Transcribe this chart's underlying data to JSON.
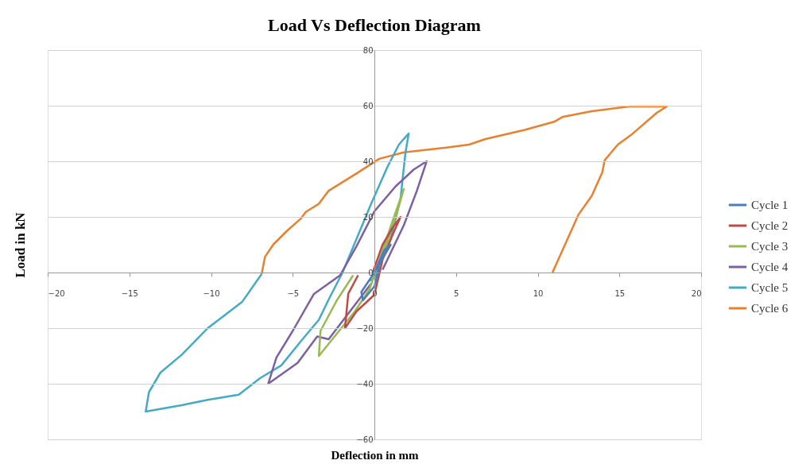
{
  "chart_data": {
    "type": "line",
    "title": "Load Vs Deflection Diagram",
    "xlabel": "Deflection in mm",
    "ylabel": "Load in kN",
    "xlim": [
      -20,
      20
    ],
    "ylim": [
      -60,
      80
    ],
    "xticks": [
      -20,
      -15,
      -10,
      -5,
      0,
      5,
      10,
      15,
      20
    ],
    "yticks": [
      -60,
      -40,
      -20,
      0,
      20,
      40,
      60,
      80
    ],
    "grid": "y",
    "legend": "right",
    "marker": "none",
    "line_style": "solid",
    "series": [
      {
        "name": "Cycle 1",
        "color": "#4a7ebb",
        "x": [
          0.1,
          0.5,
          1,
          0.6,
          0,
          -0.8,
          -0.7,
          0,
          0.3
        ],
        "values": [
          1,
          5,
          10,
          8,
          0,
          -7,
          -10,
          -5,
          2
        ]
      },
      {
        "name": "Cycle 2",
        "color": "#be4b48",
        "x": [
          -0.1,
          0.5,
          1.1,
          1.6,
          1.0,
          0.5,
          0,
          -1.1,
          -1.8,
          -1.6,
          -1
        ],
        "values": [
          0,
          10,
          16,
          20,
          12,
          4.6,
          -8,
          -14,
          -20,
          -7.6,
          -1
        ]
      },
      {
        "name": "Cycle 3",
        "color": "#98b954",
        "x": [
          0.2,
          0.8,
          1.4,
          1.8,
          1.2,
          0.4,
          -0.3,
          -1.2,
          -2.3,
          -3.4,
          -3.3,
          -2.3,
          -1.3
        ],
        "values": [
          2,
          11,
          22,
          30,
          20,
          6,
          -6,
          -14,
          -22,
          -30,
          -21,
          -10,
          -1
        ]
      },
      {
        "name": "Cycle 4",
        "color": "#7d60a0",
        "x": [
          0.5,
          1.8,
          2.6,
          3.2,
          2.4,
          1.3,
          0,
          -1.1,
          -2.1,
          -3.7,
          -5.0,
          -6.0,
          -6.5,
          -4.7,
          -3.5,
          -2.8,
          -0.2
        ],
        "values": [
          1,
          17,
          29.4,
          40,
          37,
          31,
          22,
          9.4,
          -1,
          -7.7,
          -21,
          -30.6,
          -40,
          -32.5,
          -23,
          -24,
          -4
        ]
      },
      {
        "name": "Cycle 5",
        "color": "#46aac5",
        "x": [
          -0.3,
          0,
          1,
          1.6,
          1.9,
          2.1,
          1.5,
          0.8,
          -0.2,
          -1.1,
          -1.95,
          -2.8,
          -3.4,
          -4.4,
          -5.7,
          -7,
          -8.3,
          -10.2,
          -11.8,
          -14,
          -13.8,
          -13.1,
          -11.8,
          -10.2,
          -8.1,
          -6.9
        ],
        "values": [
          -3,
          -2,
          12,
          26.6,
          43,
          50,
          46,
          38,
          24.7,
          12,
          0,
          -9.7,
          -17,
          -24,
          -33.4,
          -38,
          -43.9,
          -45.8,
          -47.7,
          -50,
          -43,
          -36,
          -29.6,
          -20,
          -10.6,
          -0.5
        ]
      },
      {
        "name": "Cycle 6",
        "color": "#e8812f",
        "x": [
          -6.9,
          -6.7,
          -6.2,
          -5.35,
          -4.5,
          -4.2,
          -3.4,
          -2.8,
          -1.1,
          0.3,
          1.8,
          4.4,
          5.8,
          6.8,
          9.2,
          11.0,
          11.5,
          13.3,
          15.6,
          17.9,
          17.3,
          15.7,
          14.9,
          14.1,
          13.95,
          13.3,
          12.5,
          11.7,
          10.9
        ],
        "values": [
          -0.5,
          5.6,
          10,
          15,
          19.4,
          21.8,
          24.7,
          29.4,
          35.6,
          40.9,
          43.2,
          44.9,
          46,
          48,
          51.3,
          54.2,
          55.9,
          58,
          59.7,
          59.7,
          57.5,
          49.4,
          46,
          40.4,
          36,
          27.5,
          20.9,
          10.4,
          0
        ]
      }
    ]
  }
}
